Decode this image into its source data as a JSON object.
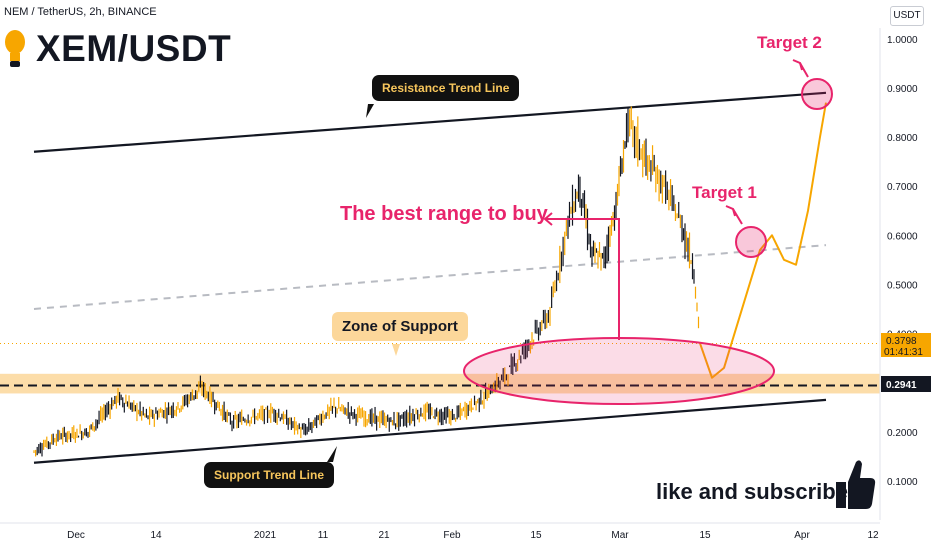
{
  "header": {
    "symbol_line": "NEM / TetherUS, 2h, BINANCE",
    "title": "XEM/USDT",
    "currency": "USDT"
  },
  "chart_data": {
    "type": "line",
    "y_ticks": [
      0.1,
      0.2,
      0.3,
      0.4,
      0.5,
      0.6,
      0.7,
      0.8,
      0.9,
      1.0
    ],
    "y_tick_labels": [
      "0.1000",
      "0.2000",
      "0.3000",
      "0.4000",
      "0.5000",
      "0.6000",
      "0.7000",
      "0.8000",
      "0.9000",
      "1.0000"
    ],
    "x_tick_labels": [
      "Dec",
      "14",
      "2021",
      "11",
      "21",
      "Feb",
      "15",
      "Mar",
      "15",
      "Apr",
      "12"
    ],
    "price_series": [
      [
        "2020-11-24",
        0.16
      ],
      [
        "2020-11-28",
        0.19
      ],
      [
        "2020-12-03",
        0.2
      ],
      [
        "2020-12-08",
        0.27
      ],
      [
        "2020-12-13",
        0.23
      ],
      [
        "2020-12-18",
        0.25
      ],
      [
        "2020-12-22",
        0.29
      ],
      [
        "2020-12-27",
        0.22
      ],
      [
        "2021-01-03",
        0.24
      ],
      [
        "2021-01-08",
        0.2
      ],
      [
        "2021-01-13",
        0.25
      ],
      [
        "2021-01-18",
        0.23
      ],
      [
        "2021-01-23",
        0.22
      ],
      [
        "2021-01-28",
        0.24
      ],
      [
        "2021-02-02",
        0.23
      ],
      [
        "2021-02-07",
        0.27
      ],
      [
        "2021-02-11",
        0.32
      ],
      [
        "2021-02-15",
        0.39
      ],
      [
        "2021-02-18",
        0.44
      ],
      [
        "2021-02-21",
        0.63
      ],
      [
        "2021-02-23",
        0.7
      ],
      [
        "2021-02-25",
        0.56
      ],
      [
        "2021-02-27",
        0.55
      ],
      [
        "2021-03-01",
        0.66
      ],
      [
        "2021-03-03",
        0.83
      ],
      [
        "2021-03-06",
        0.75
      ],
      [
        "2021-03-09",
        0.7
      ],
      [
        "2021-03-12",
        0.62
      ],
      [
        "2021-03-14",
        0.53
      ],
      [
        "2021-03-15",
        0.38
      ]
    ],
    "projection_series": [
      [
        "2021-03-15",
        0.38
      ],
      [
        "2021-03-17",
        0.31
      ],
      [
        "2021-03-19",
        0.33
      ],
      [
        "2021-03-22",
        0.45
      ],
      [
        "2021-03-25",
        0.57
      ],
      [
        "2021-03-27",
        0.6
      ],
      [
        "2021-03-29",
        0.55
      ],
      [
        "2021-03-31",
        0.54
      ],
      [
        "2021-04-02",
        0.65
      ],
      [
        "2021-04-04",
        0.8
      ],
      [
        "2021-04-05",
        0.87
      ]
    ],
    "resistance_line": [
      [
        "2020-11-24",
        0.77
      ],
      [
        "2021-04-05",
        0.89
      ]
    ],
    "support_line": [
      [
        "2020-11-24",
        0.137
      ],
      [
        "2021-04-05",
        0.265
      ]
    ],
    "midline": [
      [
        "2020-11-24",
        0.45
      ],
      [
        "2021-04-05",
        0.58
      ]
    ],
    "support_level": 0.2941,
    "last_price": 0.3798,
    "zone_range": [
      0.278,
      0.318
    ],
    "colors": {
      "up": "#f7a600",
      "down": "#131722",
      "accent": "#e8246b",
      "zone": "#fcd79a",
      "projection": "#f7a600"
    }
  },
  "annotations": {
    "resistance": "Resistance Trend Line",
    "support": "Support Trend Line",
    "zone": "Zone of Support",
    "best_range": "The best range to buy",
    "target1": "Target 1",
    "target2": "Target 2",
    "subscribe": "like and subscribe"
  },
  "price_labels": {
    "last": "0.3798",
    "countdown": "01:41:31",
    "level": "0.2941"
  }
}
